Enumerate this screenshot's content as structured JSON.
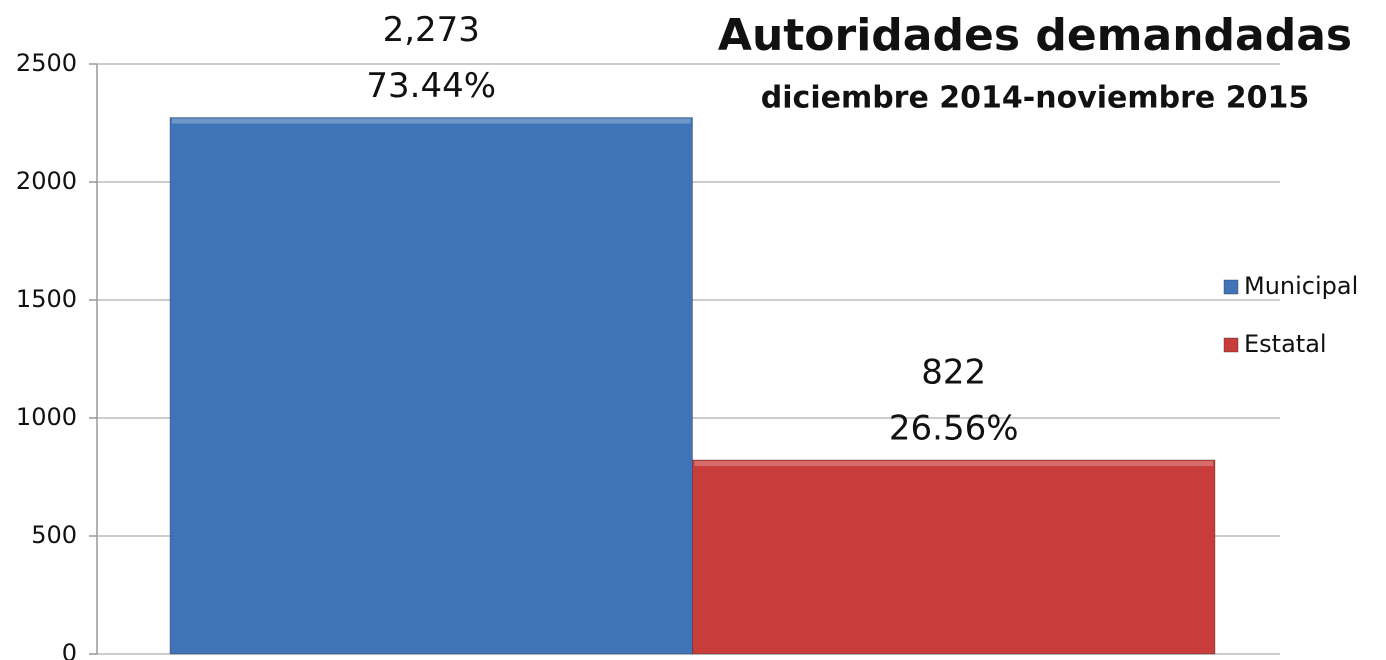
{
  "chart_data": {
    "type": "bar",
    "title": "Autoridades demandadas",
    "subtitle": "diciembre 2014-noviembre 2015",
    "categories": [
      null
    ],
    "series": [
      {
        "name": "Municipal",
        "color": "#3f74b8",
        "values": [
          2273
        ],
        "value_labels": [
          "2,273"
        ],
        "share_labels": [
          "73.44%"
        ]
      },
      {
        "name": "Estatal",
        "color": "#c83c39",
        "values": [
          822
        ],
        "value_labels": [
          "822"
        ],
        "share_labels": [
          "26.56%"
        ]
      }
    ],
    "ylim": [
      0,
      2500
    ],
    "yticks": [
      0,
      500,
      1000,
      1500,
      2000,
      2500
    ],
    "grid": true,
    "legend": "right"
  }
}
